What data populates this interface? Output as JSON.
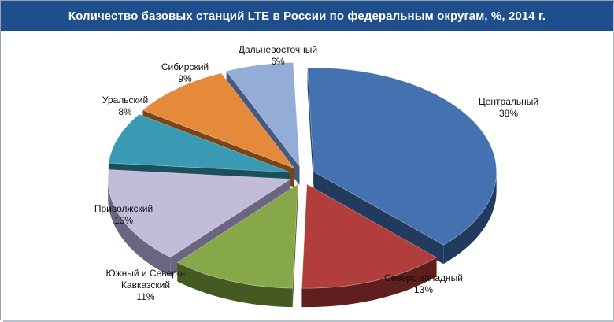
{
  "chart_data": {
    "type": "pie",
    "title": "Количество базовых станций LTE в России по федеральным округам, %, 2014 г.",
    "slices": [
      {
        "label": "Центральный",
        "value_text": "38%",
        "value": 38,
        "color": "#4472b0",
        "side_color": "#223a5e"
      },
      {
        "label": "Северо-западный",
        "value_text": "13%",
        "value": 13,
        "color": "#b13d3c",
        "side_color": "#5e1f1e"
      },
      {
        "label": "Южный и Северо-Кавказский",
        "label_lines": [
          "Южный и Северо-",
          "Кавказский"
        ],
        "value_text": "11%",
        "value": 11,
        "color": "#86a848",
        "side_color": "#445a22"
      },
      {
        "label": "Приволжский",
        "value_text": "15%",
        "value": 15,
        "color": "#c3bcd9",
        "side_color": "#6b6582"
      },
      {
        "label": "Уральский",
        "value_text": "8%",
        "value": 8,
        "color": "#3a9ab3",
        "side_color": "#1c4f5c"
      },
      {
        "label": "Сибирский",
        "value_text": "9%",
        "value": 9,
        "color": "#e5893b",
        "side_color": "#7a4414"
      },
      {
        "label": "Дальневосточный",
        "value_text": "6%",
        "value": 6,
        "color": "#94acd8",
        "side_color": "#465a80"
      }
    ],
    "exploded": true,
    "three_d": true
  }
}
